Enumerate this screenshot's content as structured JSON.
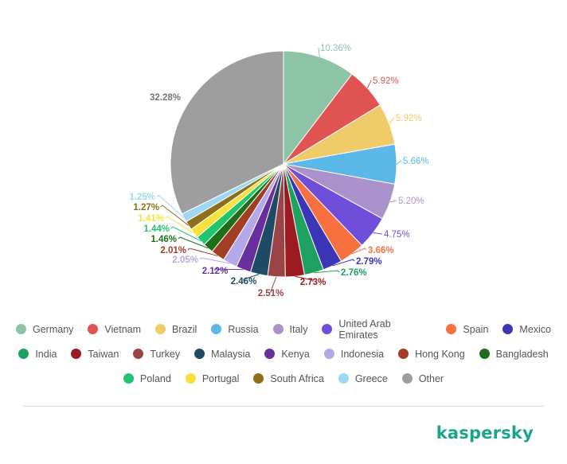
{
  "chart_data": {
    "type": "pie",
    "title": "",
    "legend_position": "bottom",
    "slices": [
      {
        "label": "Germany",
        "value": 10.36,
        "color": "#8dc4a6",
        "value_label": "10.36%"
      },
      {
        "label": "Vietnam",
        "value": 5.92,
        "color": "#df5353",
        "value_label": "5.92%"
      },
      {
        "label": "Brazil",
        "value": 5.92,
        "color": "#f0cb6a",
        "value_label": "5.92%"
      },
      {
        "label": "Russia",
        "value": 5.66,
        "color": "#5cb8e8",
        "value_label": "5.66%"
      },
      {
        "label": "Italy",
        "value": 5.2,
        "color": "#ab92cc",
        "value_label": "5.20%"
      },
      {
        "label": "United Arab Emirates",
        "value": 4.75,
        "color": "#6f4fd9",
        "value_label": "4.75%"
      },
      {
        "label": "Spain",
        "value": 3.66,
        "color": "#f7703f",
        "value_label": "3.66%"
      },
      {
        "label": "Mexico",
        "value": 2.79,
        "color": "#3a36b6",
        "value_label": "2.79%"
      },
      {
        "label": "India",
        "value": 2.76,
        "color": "#1fa160",
        "value_label": "2.76%"
      },
      {
        "label": "Taiwan",
        "value": 2.73,
        "color": "#9b1b20",
        "value_label": "2.73%"
      },
      {
        "label": "Turkey",
        "value": 2.51,
        "color": "#9a4448",
        "value_label": "2.51%"
      },
      {
        "label": "Malaysia",
        "value": 2.46,
        "color": "#1e4b66",
        "value_label": "2.46%"
      },
      {
        "label": "Kenya",
        "value": 2.12,
        "color": "#6a2f9e",
        "value_label": "2.12%"
      },
      {
        "label": "Indonesia",
        "value": 2.05,
        "color": "#b3a9e8",
        "value_label": "2.05%"
      },
      {
        "label": "Hong Kong",
        "value": 2.01,
        "color": "#a33d23",
        "value_label": "2.01%"
      },
      {
        "label": "Bangladesh",
        "value": 1.46,
        "color": "#1f6e1a",
        "value_label": "1.46%"
      },
      {
        "label": "Poland",
        "value": 1.44,
        "color": "#22c46d",
        "value_label": "1.44%"
      },
      {
        "label": "Portugal",
        "value": 1.41,
        "color": "#f8e23a",
        "value_label": "1.41%"
      },
      {
        "label": "South Africa",
        "value": 1.27,
        "color": "#8f6f1c",
        "value_label": "1.27%"
      },
      {
        "label": "Greece",
        "value": 1.25,
        "color": "#9bd9f2",
        "value_label": "1.25%"
      },
      {
        "label": "Other",
        "value": 32.28,
        "color": "#9e9e9e",
        "value_label": "32.28%"
      }
    ]
  },
  "brand": "kaspersky"
}
